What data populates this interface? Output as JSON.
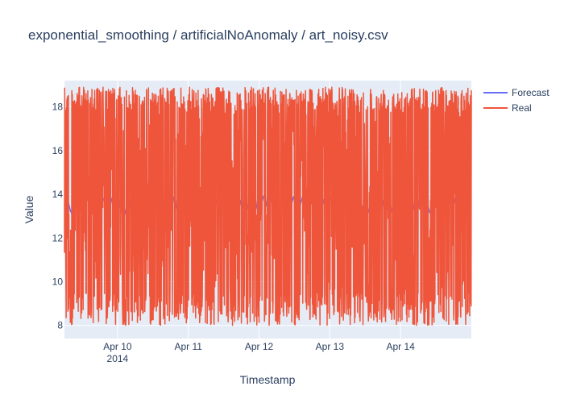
{
  "chart_data": {
    "type": "line",
    "title": "exponential_smoothing / artificialNoAnomaly / art_noisy.csv",
    "xlabel": "Timestamp",
    "ylabel": "Value",
    "x_range": [
      "2014-04-09 06:00",
      "2014-04-15 00:00"
    ],
    "ylim": [
      7.4,
      19.2
    ],
    "y_ticks": [
      8,
      10,
      12,
      14,
      16,
      18
    ],
    "x_ticks": [
      {
        "date": "2014-04-10",
        "label": "Apr 10",
        "sublabel": "2014"
      },
      {
        "date": "2014-04-11",
        "label": "Apr 11",
        "sublabel": ""
      },
      {
        "date": "2014-04-12",
        "label": "Apr 12",
        "sublabel": ""
      },
      {
        "date": "2014-04-13",
        "label": "Apr 13",
        "sublabel": ""
      },
      {
        "date": "2014-04-14",
        "label": "Apr 14",
        "sublabel": ""
      }
    ],
    "grid": true,
    "legend_position": "top-right",
    "series": [
      {
        "name": "Forecast",
        "color": "#636efa",
        "approx_value": 13.5
      },
      {
        "name": "Real",
        "color": "#ef553b",
        "value_range": [
          8,
          18.9
        ],
        "point_interval_minutes": 5
      }
    ]
  },
  "colors": {
    "plot_background": "#e5ecf6",
    "grid": "#ffffff",
    "text": "#2a3f5f"
  }
}
